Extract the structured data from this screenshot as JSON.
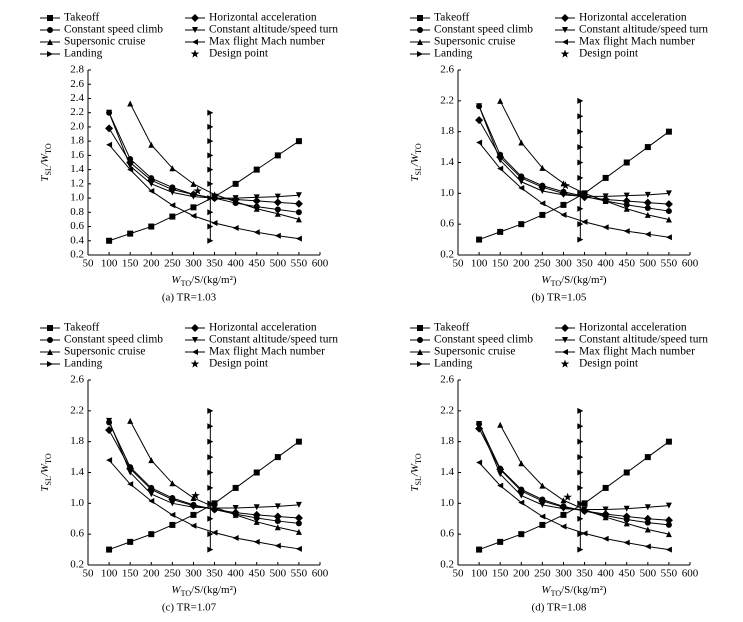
{
  "chart_data": [
    {
      "type": "line",
      "caption": "(a) TR=1.03",
      "xlabel": [
        "W",
        "TO",
        "/S/(kg/m²)"
      ],
      "ylabel": [
        "T",
        "SL",
        "/W",
        "TO"
      ],
      "xlim": [
        50,
        600
      ],
      "xticks": [
        50,
        100,
        150,
        200,
        250,
        300,
        350,
        400,
        450,
        500,
        550,
        600
      ],
      "ylim": [
        0.2,
        2.8
      ],
      "yticks": [
        0.2,
        0.4,
        0.6,
        0.8,
        {
          "value": 1,
          "label": "1.0"
        },
        1.2,
        1.4,
        1.6,
        1.8,
        {
          "value": 2,
          "label": "2.0"
        },
        2.2,
        2.4,
        2.6,
        2.8
      ],
      "series": [
        {
          "name": "Takeoff",
          "marker": "square",
          "color": "#000000",
          "x": [
            100,
            150,
            200,
            250,
            300,
            350,
            400,
            450,
            500,
            550
          ],
          "values": [
            0.4,
            0.5,
            0.6,
            0.74,
            0.87,
            1.02,
            1.2,
            1.4,
            1.6,
            1.8
          ]
        },
        {
          "name": "Horizontal acceleration",
          "marker": "diamond",
          "color": "#000000",
          "x": [
            100,
            150,
            200,
            250,
            300,
            350,
            400,
            450,
            500,
            550
          ],
          "values": [
            1.98,
            1.5,
            1.25,
            1.12,
            1.05,
            1.0,
            0.98,
            0.96,
            0.94,
            0.92
          ]
        },
        {
          "name": "Constant speed climb",
          "marker": "circle",
          "color": "#000000",
          "x": [
            100,
            150,
            200,
            250,
            300,
            350,
            400,
            450,
            500,
            550
          ],
          "values": [
            2.2,
            1.55,
            1.28,
            1.15,
            1.05,
            1.0,
            0.93,
            0.88,
            0.84,
            0.8
          ]
        },
        {
          "name": "Constant altitude/speed turn",
          "marker": "tri-down",
          "color": "#000000",
          "x": [
            100,
            150,
            200,
            250,
            300,
            350,
            400,
            450,
            500,
            550
          ],
          "values": [
            2.2,
            1.45,
            1.2,
            1.08,
            1.02,
            1.0,
            1.0,
            1.01,
            1.02,
            1.04
          ]
        },
        {
          "name": "Supersonic cruise",
          "marker": "tri-up",
          "color": "#000000",
          "x": [
            150,
            200,
            250,
            300,
            350,
            400,
            450,
            500,
            550
          ],
          "values": [
            2.33,
            1.75,
            1.42,
            1.2,
            1.05,
            0.95,
            0.85,
            0.78,
            0.7
          ]
        },
        {
          "name": "Max flight Mach number",
          "marker": "tri-left",
          "color": "#000000",
          "x": [
            100,
            150,
            200,
            250,
            300,
            350,
            400,
            450,
            500,
            550
          ],
          "values": [
            1.75,
            1.4,
            1.1,
            0.9,
            0.75,
            0.65,
            0.58,
            0.52,
            0.47,
            0.43
          ]
        },
        {
          "name": "Landing",
          "marker": "tri-right",
          "color": "#000000",
          "x": [
            340,
            340,
            340,
            340,
            340,
            340,
            340,
            340,
            340,
            340
          ],
          "values": [
            0.4,
            0.6,
            0.8,
            1.0,
            1.2,
            1.4,
            1.6,
            1.8,
            2.0,
            2.2
          ]
        },
        {
          "name": "Design point",
          "marker": "star",
          "color": "#000000",
          "x": [
            310
          ],
          "values": [
            1.1
          ]
        }
      ]
    },
    {
      "type": "line",
      "caption": "(b) TR=1.05",
      "xlabel": [
        "W",
        "TO",
        "/S/(kg/m²)"
      ],
      "ylabel": [
        "T",
        "SL",
        "/W",
        "TO"
      ],
      "xlim": [
        50,
        600
      ],
      "xticks": [
        50,
        100,
        150,
        200,
        250,
        300,
        350,
        400,
        450,
        500,
        550,
        600
      ],
      "ylim": [
        0.2,
        2.6
      ],
      "yticks": [
        0.2,
        0.6,
        {
          "value": 1,
          "label": "1.0"
        },
        1.4,
        1.8,
        2.2,
        2.6
      ],
      "series": [
        {
          "name": "Takeoff",
          "marker": "square",
          "color": "#000000",
          "x": [
            100,
            150,
            200,
            250,
            300,
            350,
            400,
            450,
            500,
            550
          ],
          "values": [
            0.4,
            0.5,
            0.6,
            0.72,
            0.85,
            1.0,
            1.2,
            1.4,
            1.6,
            1.8
          ]
        },
        {
          "name": "Horizontal acceleration",
          "marker": "diamond",
          "color": "#000000",
          "x": [
            100,
            150,
            200,
            250,
            300,
            350,
            400,
            450,
            500,
            550
          ],
          "values": [
            1.95,
            1.47,
            1.2,
            1.08,
            1.0,
            0.95,
            0.92,
            0.9,
            0.88,
            0.86
          ]
        },
        {
          "name": "Constant speed climb",
          "marker": "circle",
          "color": "#000000",
          "x": [
            100,
            150,
            200,
            250,
            300,
            350,
            400,
            450,
            500,
            550
          ],
          "values": [
            2.13,
            1.5,
            1.22,
            1.1,
            1.02,
            0.96,
            0.9,
            0.85,
            0.81,
            0.77
          ]
        },
        {
          "name": "Constant altitude/speed turn",
          "marker": "tri-down",
          "color": "#000000",
          "x": [
            100,
            150,
            200,
            250,
            300,
            350,
            400,
            450,
            500,
            550
          ],
          "values": [
            2.13,
            1.43,
            1.15,
            1.03,
            0.98,
            0.96,
            0.96,
            0.97,
            0.98,
            1.0
          ]
        },
        {
          "name": "Supersonic cruise",
          "marker": "tri-up",
          "color": "#000000",
          "x": [
            150,
            200,
            250,
            300,
            350,
            400,
            450,
            500,
            550
          ],
          "values": [
            2.2,
            1.66,
            1.33,
            1.13,
            1.0,
            0.9,
            0.8,
            0.72,
            0.66
          ]
        },
        {
          "name": "Max flight Mach number",
          "marker": "tri-left",
          "color": "#000000",
          "x": [
            100,
            150,
            200,
            250,
            300,
            350,
            400,
            450,
            500,
            550
          ],
          "values": [
            1.66,
            1.32,
            1.07,
            0.87,
            0.72,
            0.63,
            0.56,
            0.51,
            0.47,
            0.43
          ]
        },
        {
          "name": "Landing",
          "marker": "tri-right",
          "color": "#000000",
          "x": [
            340,
            340,
            340,
            340,
            340,
            340,
            340,
            340,
            340,
            340
          ],
          "values": [
            0.4,
            0.6,
            0.8,
            1.0,
            1.2,
            1.4,
            1.6,
            1.8,
            2.0,
            2.2
          ]
        },
        {
          "name": "Design point",
          "marker": "star",
          "color": "#000000",
          "x": [
            305
          ],
          "values": [
            1.1
          ]
        }
      ]
    },
    {
      "type": "line",
      "caption": "(c) TR=1.07",
      "xlabel": [
        "W",
        "TO",
        "/S/(kg/m²)"
      ],
      "ylabel": [
        "T",
        "SL",
        "/W",
        "TO"
      ],
      "xlim": [
        50,
        600
      ],
      "xticks": [
        50,
        100,
        150,
        200,
        250,
        300,
        350,
        400,
        450,
        500,
        550,
        600
      ],
      "ylim": [
        0.2,
        2.6
      ],
      "yticks": [
        0.2,
        0.6,
        {
          "value": 1,
          "label": "1.0"
        },
        1.4,
        1.8,
        2.2,
        2.6
      ],
      "series": [
        {
          "name": "Takeoff",
          "marker": "square",
          "color": "#000000",
          "x": [
            100,
            150,
            200,
            250,
            300,
            350,
            400,
            450,
            500,
            550
          ],
          "values": [
            0.4,
            0.5,
            0.6,
            0.72,
            0.85,
            1.0,
            1.2,
            1.4,
            1.6,
            1.8
          ]
        },
        {
          "name": "Horizontal acceleration",
          "marker": "diamond",
          "color": "#000000",
          "x": [
            100,
            150,
            200,
            250,
            300,
            350,
            400,
            450,
            500,
            550
          ],
          "values": [
            1.95,
            1.45,
            1.18,
            1.05,
            0.97,
            0.92,
            0.88,
            0.85,
            0.83,
            0.81
          ]
        },
        {
          "name": "Constant speed climb",
          "marker": "circle",
          "color": "#000000",
          "x": [
            100,
            150,
            200,
            250,
            300,
            350,
            400,
            450,
            500,
            550
          ],
          "values": [
            2.05,
            1.47,
            1.2,
            1.07,
            0.98,
            0.92,
            0.86,
            0.81,
            0.77,
            0.74
          ]
        },
        {
          "name": "Constant altitude/speed turn",
          "marker": "tri-down",
          "color": "#000000",
          "x": [
            100,
            150,
            200,
            250,
            300,
            350,
            400,
            450,
            500,
            550
          ],
          "values": [
            2.07,
            1.4,
            1.12,
            1.0,
            0.95,
            0.94,
            0.94,
            0.95,
            0.96,
            0.98
          ]
        },
        {
          "name": "Supersonic cruise",
          "marker": "tri-up",
          "color": "#000000",
          "x": [
            150,
            200,
            250,
            300,
            350,
            400,
            450,
            500,
            550
          ],
          "values": [
            2.07,
            1.56,
            1.26,
            1.07,
            0.95,
            0.85,
            0.76,
            0.69,
            0.63
          ]
        },
        {
          "name": "Max flight Mach number",
          "marker": "tri-left",
          "color": "#000000",
          "x": [
            100,
            150,
            200,
            250,
            300,
            350,
            400,
            450,
            500,
            550
          ],
          "values": [
            1.56,
            1.25,
            1.03,
            0.85,
            0.71,
            0.62,
            0.55,
            0.5,
            0.45,
            0.41
          ]
        },
        {
          "name": "Landing",
          "marker": "tri-right",
          "color": "#000000",
          "x": [
            340,
            340,
            340,
            340,
            340,
            340,
            340,
            340,
            340,
            340
          ],
          "values": [
            0.4,
            0.6,
            0.8,
            1.0,
            1.2,
            1.4,
            1.6,
            1.8,
            2.0,
            2.2
          ]
        },
        {
          "name": "Design point",
          "marker": "star",
          "color": "#000000",
          "x": [
            305
          ],
          "values": [
            1.1
          ]
        }
      ]
    },
    {
      "type": "line",
      "caption": "(d) TR=1.08",
      "xlabel": [
        "W",
        "TO",
        "/S/(kg/m²)"
      ],
      "ylabel": [
        "T",
        "SL",
        "/W",
        "TO"
      ],
      "xlim": [
        50,
        600
      ],
      "xticks": [
        50,
        100,
        150,
        200,
        250,
        300,
        350,
        400,
        450,
        500,
        550,
        600
      ],
      "ylim": [
        0.2,
        2.6
      ],
      "yticks": [
        0.2,
        0.6,
        {
          "value": 1,
          "label": "1.0"
        },
        1.4,
        1.8,
        2.2,
        2.6
      ],
      "series": [
        {
          "name": "Takeoff",
          "marker": "square",
          "color": "#000000",
          "x": [
            100,
            150,
            200,
            250,
            300,
            350,
            400,
            450,
            500,
            550
          ],
          "values": [
            0.4,
            0.5,
            0.6,
            0.72,
            0.85,
            1.0,
            1.2,
            1.4,
            1.6,
            1.8
          ]
        },
        {
          "name": "Horizontal acceleration",
          "marker": "diamond",
          "color": "#000000",
          "x": [
            100,
            150,
            200,
            250,
            300,
            350,
            400,
            450,
            500,
            550
          ],
          "values": [
            1.97,
            1.44,
            1.16,
            1.03,
            0.95,
            0.9,
            0.86,
            0.83,
            0.8,
            0.78
          ]
        },
        {
          "name": "Constant speed climb",
          "marker": "circle",
          "color": "#000000",
          "x": [
            100,
            150,
            200,
            250,
            300,
            350,
            400,
            450,
            500,
            550
          ],
          "values": [
            2.03,
            1.45,
            1.18,
            1.05,
            0.96,
            0.9,
            0.84,
            0.79,
            0.75,
            0.72
          ]
        },
        {
          "name": "Constant altitude/speed turn",
          "marker": "tri-down",
          "color": "#000000",
          "x": [
            100,
            150,
            200,
            250,
            300,
            350,
            400,
            450,
            500,
            550
          ],
          "values": [
            2.03,
            1.38,
            1.1,
            0.98,
            0.93,
            0.92,
            0.92,
            0.93,
            0.95,
            0.97
          ]
        },
        {
          "name": "Supersonic cruise",
          "marker": "tri-up",
          "color": "#000000",
          "x": [
            150,
            200,
            250,
            300,
            350,
            400,
            450,
            500,
            550
          ],
          "values": [
            2.02,
            1.52,
            1.23,
            1.04,
            0.92,
            0.82,
            0.74,
            0.66,
            0.6
          ]
        },
        {
          "name": "Max flight Mach number",
          "marker": "tri-left",
          "color": "#000000",
          "x": [
            100,
            150,
            200,
            250,
            300,
            350,
            400,
            450,
            500,
            550
          ],
          "values": [
            1.53,
            1.23,
            1.01,
            0.83,
            0.7,
            0.61,
            0.54,
            0.49,
            0.44,
            0.4
          ]
        },
        {
          "name": "Landing",
          "marker": "tri-right",
          "color": "#000000",
          "x": [
            340,
            340,
            340,
            340,
            340,
            340,
            340,
            340,
            340,
            340
          ],
          "values": [
            0.4,
            0.6,
            0.8,
            1.0,
            1.2,
            1.4,
            1.6,
            1.8,
            2.0,
            2.2
          ]
        },
        {
          "name": "Design point",
          "marker": "star",
          "color": "#000000",
          "x": [
            310
          ],
          "values": [
            1.08
          ]
        }
      ]
    }
  ]
}
